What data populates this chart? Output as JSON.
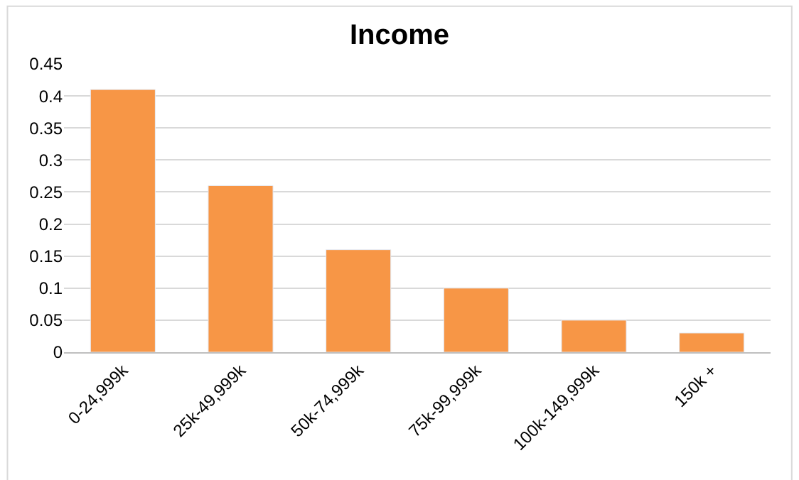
{
  "chart_data": {
    "type": "bar",
    "title": "Income",
    "categories": [
      "0-24,999k",
      "25k-49,999k",
      "50k-74,999k",
      "75k-99,999k",
      "100k-149,999k",
      "150k +"
    ],
    "values": [
      0.41,
      0.26,
      0.16,
      0.1,
      0.05,
      0.03
    ],
    "color": "#f79646",
    "ylim": [
      0,
      0.45
    ],
    "yticks": [
      0,
      0.05,
      0.1,
      0.15,
      0.2,
      0.25,
      0.3,
      0.35,
      0.4,
      0.45
    ],
    "grid": "y",
    "legend": false
  }
}
